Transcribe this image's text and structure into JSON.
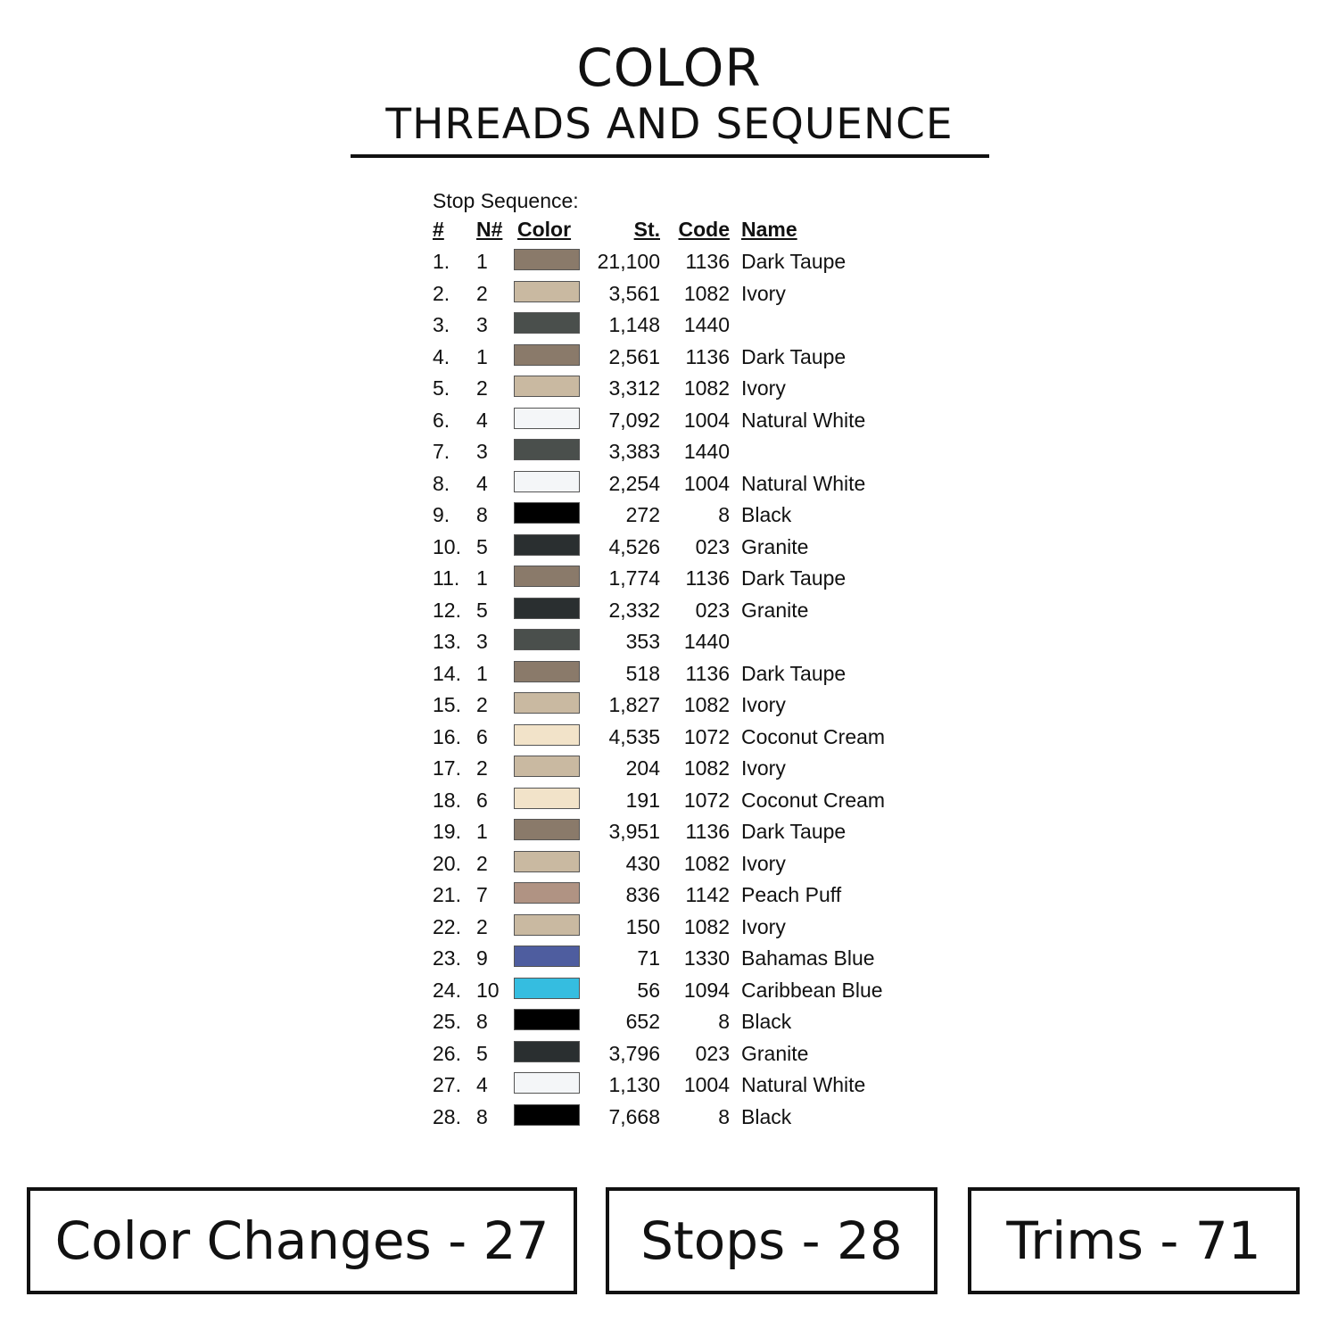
{
  "header": {
    "title": "COLOR",
    "subtitle": "THREADS AND SEQUENCE"
  },
  "table": {
    "caption": "Stop Sequence:",
    "columns": {
      "index": "#",
      "needle": "N#",
      "color": "Color",
      "stitches": "St.",
      "code": "Code",
      "name": "Name"
    },
    "rows": [
      {
        "index": "1.",
        "needle": "1",
        "color": "#8a7a6a",
        "stitches": "21,100",
        "code": "1136",
        "name": "Dark Taupe"
      },
      {
        "index": "2.",
        "needle": "2",
        "color": "#c9b9a1",
        "stitches": "3,561",
        "code": "1082",
        "name": "Ivory"
      },
      {
        "index": "3.",
        "needle": "3",
        "color": "#4a4f4c",
        "stitches": "1,148",
        "code": "1440",
        "name": ""
      },
      {
        "index": "4.",
        "needle": "1",
        "color": "#8a7a6a",
        "stitches": "2,561",
        "code": "1136",
        "name": "Dark Taupe"
      },
      {
        "index": "5.",
        "needle": "2",
        "color": "#c9b9a1",
        "stitches": "3,312",
        "code": "1082",
        "name": "Ivory"
      },
      {
        "index": "6.",
        "needle": "4",
        "color": "#f4f6f8",
        "stitches": "7,092",
        "code": "1004",
        "name": "Natural White"
      },
      {
        "index": "7.",
        "needle": "3",
        "color": "#4a4f4c",
        "stitches": "3,383",
        "code": "1440",
        "name": ""
      },
      {
        "index": "8.",
        "needle": "4",
        "color": "#f4f6f8",
        "stitches": "2,254",
        "code": "1004",
        "name": "Natural White"
      },
      {
        "index": "9.",
        "needle": "8",
        "color": "#000000",
        "stitches": "272",
        "code": "8",
        "name": "Black"
      },
      {
        "index": "10.",
        "needle": "5",
        "color": "#2a2f30",
        "stitches": "4,526",
        "code": "023",
        "name": "Granite"
      },
      {
        "index": "11.",
        "needle": "1",
        "color": "#8a7a6a",
        "stitches": "1,774",
        "code": "1136",
        "name": "Dark Taupe"
      },
      {
        "index": "12.",
        "needle": "5",
        "color": "#2a2f30",
        "stitches": "2,332",
        "code": "023",
        "name": "Granite"
      },
      {
        "index": "13.",
        "needle": "3",
        "color": "#4a4f4c",
        "stitches": "353",
        "code": "1440",
        "name": ""
      },
      {
        "index": "14.",
        "needle": "1",
        "color": "#8a7a6a",
        "stitches": "518",
        "code": "1136",
        "name": "Dark Taupe"
      },
      {
        "index": "15.",
        "needle": "2",
        "color": "#c9b9a1",
        "stitches": "1,827",
        "code": "1082",
        "name": "Ivory"
      },
      {
        "index": "16.",
        "needle": "6",
        "color": "#f2e3c9",
        "stitches": "4,535",
        "code": "1072",
        "name": "Coconut Cream"
      },
      {
        "index": "17.",
        "needle": "2",
        "color": "#c9b9a1",
        "stitches": "204",
        "code": "1082",
        "name": "Ivory"
      },
      {
        "index": "18.",
        "needle": "6",
        "color": "#f2e3c9",
        "stitches": "191",
        "code": "1072",
        "name": "Coconut Cream"
      },
      {
        "index": "19.",
        "needle": "1",
        "color": "#8a7a6a",
        "stitches": "3,951",
        "code": "1136",
        "name": "Dark Taupe"
      },
      {
        "index": "20.",
        "needle": "2",
        "color": "#c9b9a1",
        "stitches": "430",
        "code": "1082",
        "name": "Ivory"
      },
      {
        "index": "21.",
        "needle": "7",
        "color": "#b09383",
        "stitches": "836",
        "code": "1142",
        "name": "Peach Puff"
      },
      {
        "index": "22.",
        "needle": "2",
        "color": "#c9b9a1",
        "stitches": "150",
        "code": "1082",
        "name": "Ivory"
      },
      {
        "index": "23.",
        "needle": "9",
        "color": "#4e5d9f",
        "stitches": "71",
        "code": "1330",
        "name": "Bahamas Blue"
      },
      {
        "index": "24.",
        "needle": "10",
        "color": "#35bde0",
        "stitches": "56",
        "code": "1094",
        "name": "Caribbean Blue"
      },
      {
        "index": "25.",
        "needle": "8",
        "color": "#000000",
        "stitches": "652",
        "code": "8",
        "name": "Black"
      },
      {
        "index": "26.",
        "needle": "5",
        "color": "#2a2f30",
        "stitches": "3,796",
        "code": "023",
        "name": "Granite"
      },
      {
        "index": "27.",
        "needle": "4",
        "color": "#f4f6f8",
        "stitches": "1,130",
        "code": "1004",
        "name": "Natural White"
      },
      {
        "index": "28.",
        "needle": "8",
        "color": "#000000",
        "stitches": "7,668",
        "code": "8",
        "name": "Black"
      }
    ]
  },
  "summary": {
    "color_changes": "Color Changes - 27",
    "stops": "Stops - 28",
    "trims": "Trims - 71"
  }
}
